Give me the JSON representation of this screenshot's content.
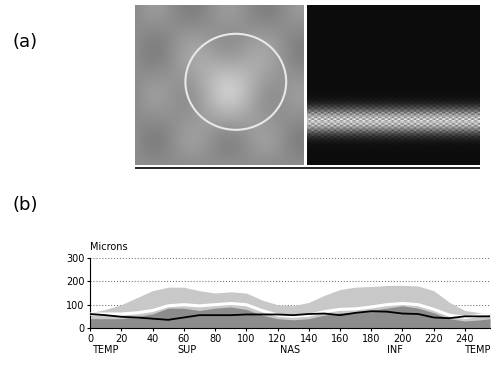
{
  "panel_labels": [
    "(a)",
    "(b)"
  ],
  "chart_data": {
    "type": "line",
    "y_label": "Microns",
    "x": [
      0,
      10,
      20,
      30,
      40,
      50,
      60,
      70,
      80,
      90,
      100,
      110,
      120,
      130,
      140,
      150,
      160,
      170,
      180,
      190,
      200,
      210,
      220,
      230,
      240,
      250,
      256
    ],
    "series": [
      {
        "type": "area",
        "color": "#c8c8c8",
        "values": [
          65,
          80,
          100,
          130,
          160,
          175,
          175,
          160,
          150,
          155,
          150,
          120,
          100,
          95,
          110,
          140,
          165,
          175,
          178,
          182,
          183,
          180,
          160,
          110,
          75,
          65,
          65
        ]
      },
      {
        "type": "line",
        "color": "#ffffff",
        "values": [
          60,
          60,
          60,
          65,
          75,
          95,
          100,
          95,
          100,
          105,
          100,
          75,
          55,
          50,
          55,
          70,
          80,
          82,
          90,
          100,
          105,
          100,
          80,
          55,
          45,
          55,
          60
        ]
      },
      {
        "type": "area",
        "color": "#8c8c8c",
        "values": [
          40,
          40,
          40,
          50,
          60,
          85,
          85,
          75,
          85,
          90,
          80,
          55,
          40,
          35,
          40,
          55,
          65,
          65,
          75,
          85,
          95,
          85,
          65,
          40,
          30,
          35,
          40
        ]
      },
      {
        "type": "line",
        "color": "#000000",
        "values": [
          60,
          55,
          48,
          45,
          40,
          35,
          45,
          55,
          55,
          55,
          58,
          58,
          58,
          55,
          60,
          62,
          55,
          65,
          72,
          70,
          62,
          60,
          45,
          42,
          50,
          50,
          50
        ]
      }
    ],
    "xlim": [
      0,
      256
    ],
    "ylim": [
      0,
      300
    ],
    "xticks": [
      0,
      20,
      40,
      60,
      80,
      100,
      120,
      140,
      160,
      180,
      200,
      220,
      240
    ],
    "yticks": [
      0,
      100,
      200,
      300
    ],
    "x_region_labels": [
      {
        "value": 10,
        "label": "TEMP"
      },
      {
        "value": 62,
        "label": "SUP"
      },
      {
        "value": 128,
        "label": "NAS"
      },
      {
        "value": 195,
        "label": "INF"
      },
      {
        "value": 248,
        "label": "TEMP"
      }
    ],
    "grid": true
  }
}
